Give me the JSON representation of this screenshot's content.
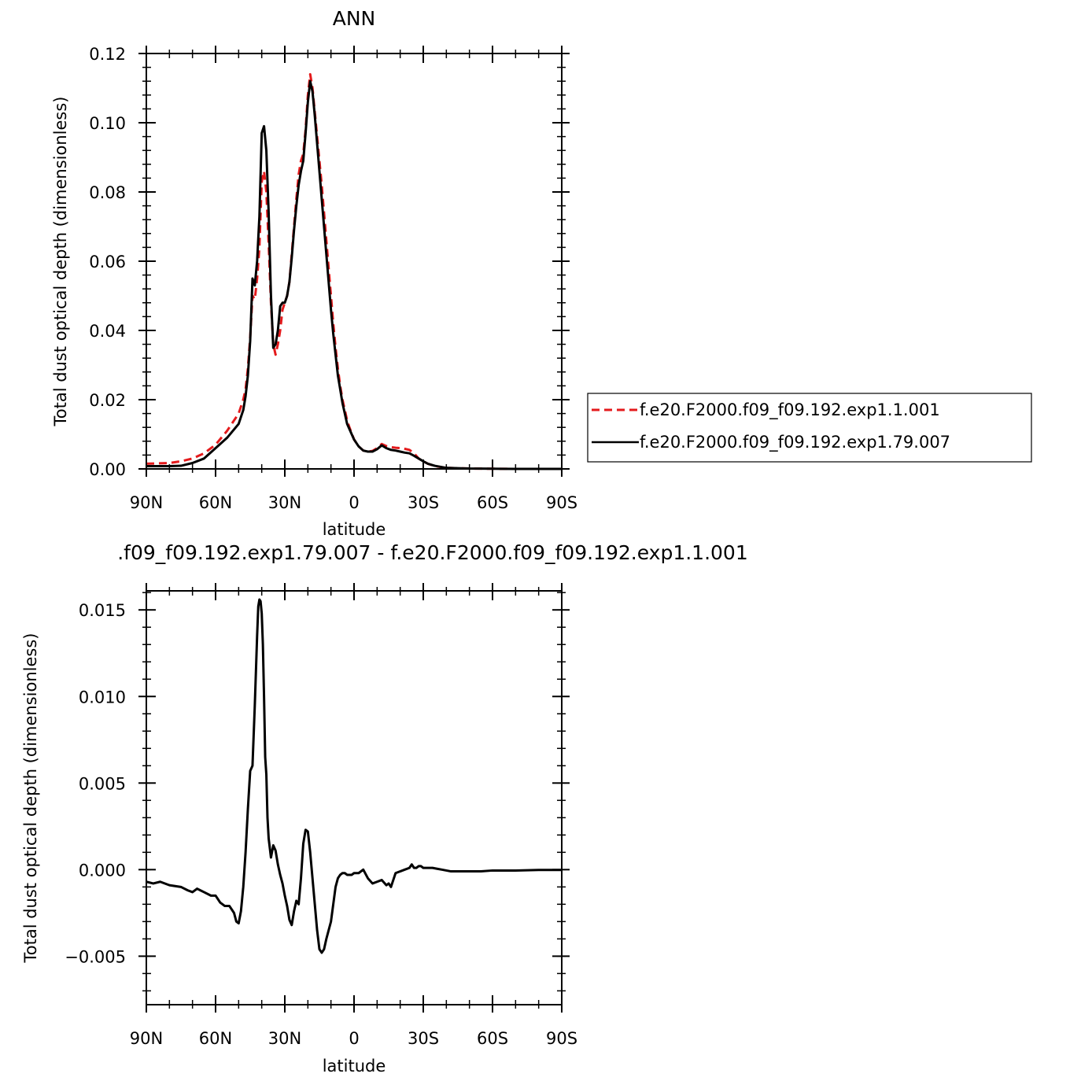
{
  "chart_data": [
    {
      "type": "line",
      "title": "ANN",
      "xlabel": "latitude",
      "ylabel": "Total dust optical depth (dimensionless)",
      "xlim": [
        90,
        -90
      ],
      "ylim": [
        0,
        0.12
      ],
      "xticks": [
        90,
        60,
        30,
        0,
        -30,
        -60,
        -90
      ],
      "xtick_labels": [
        "90N",
        "60N",
        "30N",
        "0",
        "30S",
        "60S",
        "90S"
      ],
      "yticks": [
        0,
        0.02,
        0.04,
        0.06,
        0.08,
        0.1,
        0.12
      ],
      "ytick_labels": [
        "0.00",
        "0.02",
        "0.04",
        "0.06",
        "0.08",
        "0.10",
        "0.12"
      ],
      "legend_position": "right",
      "series": [
        {
          "name": "f.e20.F2000.f09_f09.192.exp1.1.001",
          "color": "#e41a1c",
          "dash": "dashed",
          "x": [
            90,
            80,
            75,
            70,
            65,
            60,
            55,
            50,
            48,
            47,
            46,
            45,
            44,
            43,
            42,
            41,
            40,
            39,
            38,
            37,
            36,
            35,
            34,
            33,
            32,
            31,
            30,
            29,
            28,
            27,
            26,
            25,
            24,
            23,
            22,
            21,
            20,
            19,
            18,
            17,
            16,
            15,
            14,
            13,
            12,
            11,
            10,
            9,
            8,
            7,
            6,
            5,
            4,
            3,
            2,
            0,
            -2,
            -4,
            -6,
            -8,
            -10,
            -12,
            -14,
            -16,
            -18,
            -20,
            -22,
            -24,
            -26,
            -28,
            -30,
            -32,
            -35,
            -40,
            -45,
            -50,
            -60,
            -70,
            -80,
            -90
          ],
          "y": [
            0.0015,
            0.0017,
            0.0022,
            0.003,
            0.0045,
            0.007,
            0.011,
            0.016,
            0.02,
            0.023,
            0.029,
            0.038,
            0.05,
            0.049,
            0.055,
            0.064,
            0.083,
            0.086,
            0.08,
            0.065,
            0.048,
            0.036,
            0.033,
            0.036,
            0.04,
            0.046,
            0.048,
            0.05,
            0.054,
            0.062,
            0.07,
            0.078,
            0.085,
            0.089,
            0.091,
            0.098,
            0.108,
            0.114,
            0.11,
            0.103,
            0.096,
            0.089,
            0.082,
            0.074,
            0.066,
            0.058,
            0.05,
            0.042,
            0.035,
            0.029,
            0.024,
            0.02,
            0.017,
            0.014,
            0.012,
            0.0085,
            0.0065,
            0.0053,
            0.005,
            0.0052,
            0.006,
            0.0072,
            0.0066,
            0.0063,
            0.0061,
            0.006,
            0.0058,
            0.0055,
            0.0045,
            0.003,
            0.0022,
            0.0015,
            0.0008,
            0.0003,
            0.0002,
            0.0001,
            5e-05,
            0.0,
            0.0,
            0.0
          ]
        },
        {
          "name": "f.e20.F2000.f09_f09.192.exp1.79.007",
          "color": "#000000",
          "dash": "solid",
          "x": [
            90,
            80,
            75,
            70,
            65,
            60,
            55,
            50,
            48,
            47,
            46,
            45,
            44,
            43,
            42,
            41,
            40,
            39,
            38,
            37,
            36,
            35,
            34,
            33,
            32,
            31,
            30,
            29,
            28,
            27,
            26,
            25,
            24,
            23,
            22,
            21,
            20,
            19,
            18,
            17,
            16,
            15,
            14,
            13,
            12,
            11,
            10,
            9,
            8,
            7,
            6,
            5,
            4,
            3,
            2,
            0,
            -2,
            -4,
            -6,
            -8,
            -10,
            -12,
            -14,
            -16,
            -18,
            -20,
            -22,
            -24,
            -26,
            -28,
            -30,
            -32,
            -35,
            -40,
            -45,
            -50,
            -60,
            -70,
            -80,
            -90
          ],
          "y": [
            0.0008,
            0.0008,
            0.0009,
            0.0017,
            0.003,
            0.006,
            0.009,
            0.013,
            0.017,
            0.021,
            0.027,
            0.037,
            0.055,
            0.053,
            0.06,
            0.073,
            0.097,
            0.099,
            0.092,
            0.074,
            0.05,
            0.035,
            0.036,
            0.04,
            0.047,
            0.048,
            0.048,
            0.05,
            0.054,
            0.061,
            0.069,
            0.076,
            0.082,
            0.086,
            0.089,
            0.097,
            0.106,
            0.112,
            0.109,
            0.102,
            0.094,
            0.086,
            0.078,
            0.07,
            0.062,
            0.054,
            0.046,
            0.039,
            0.033,
            0.027,
            0.023,
            0.019,
            0.016,
            0.013,
            0.0115,
            0.0085,
            0.0065,
            0.0053,
            0.005,
            0.005,
            0.0057,
            0.0068,
            0.006,
            0.0055,
            0.0053,
            0.005,
            0.0047,
            0.0045,
            0.0038,
            0.003,
            0.0022,
            0.0015,
            0.0009,
            0.0003,
            0.0002,
            0.0001,
            5e-05,
            0.0,
            0.0,
            0.0
          ]
        }
      ]
    },
    {
      "type": "line",
      "title": ".f09_f09.192.exp1.79.007 - f.e20.F2000.f09_f09.192.exp1.1.001",
      "xlabel": "latitude",
      "ylabel": "Total dust optical depth (dimensionless)",
      "xlim": [
        90,
        -90
      ],
      "ylim": [
        -0.0078,
        0.0161
      ],
      "xticks": [
        90,
        60,
        30,
        0,
        -30,
        -60,
        -90
      ],
      "xtick_labels": [
        "90N",
        "60N",
        "30N",
        "0",
        "30S",
        "60S",
        "90S"
      ],
      "yticks": [
        -0.005,
        0.0,
        0.005,
        0.01,
        0.015
      ],
      "ytick_labels": [
        "−0.005",
        "0.000",
        "0.005",
        "0.010",
        "0.015"
      ],
      "series": [
        {
          "color": "#000000",
          "dash": "solid",
          "x": [
            90,
            87,
            84,
            80,
            75,
            72,
            70,
            68,
            65,
            62,
            60,
            58,
            56,
            54,
            52,
            51,
            50,
            49,
            48,
            47,
            46,
            45,
            44,
            43,
            42,
            41.5,
            41,
            40.5,
            40,
            39.5,
            39,
            38.5,
            38,
            37.5,
            37,
            36,
            35,
            34,
            33,
            32,
            31,
            30,
            29,
            28,
            27,
            26,
            25,
            24,
            23,
            22,
            21,
            20,
            19,
            18,
            17,
            16,
            15,
            14,
            13,
            12,
            11,
            10,
            9,
            8,
            7,
            6,
            5,
            4,
            3,
            2,
            1,
            0,
            -2,
            -4,
            -6,
            -8,
            -10,
            -12,
            -14,
            -15,
            -16,
            -17,
            -18,
            -20,
            -22,
            -24,
            -25,
            -26,
            -27,
            -28,
            -29,
            -30,
            -32,
            -34,
            -36,
            -38,
            -40,
            -42,
            -44,
            -46,
            -50,
            -55,
            -60,
            -70,
            -80,
            -90
          ],
          "y": [
            -0.0007,
            -0.0008,
            -0.0007,
            -0.0009,
            -0.001,
            -0.0012,
            -0.0013,
            -0.0011,
            -0.0013,
            -0.0015,
            -0.0015,
            -0.0019,
            -0.0021,
            -0.0021,
            -0.0025,
            -0.003,
            -0.0031,
            -0.0024,
            -0.001,
            0.001,
            0.0035,
            0.0057,
            0.006,
            0.0095,
            0.0135,
            0.0152,
            0.0156,
            0.0155,
            0.0148,
            0.013,
            0.01,
            0.0065,
            0.0055,
            0.003,
            0.0018,
            0.0007,
            0.0014,
            0.0011,
            0.0003,
            -0.0003,
            -0.0008,
            -0.0015,
            -0.0021,
            -0.0029,
            -0.0032,
            -0.0024,
            -0.0018,
            -0.002,
            -0.0005,
            0.0015,
            0.0023,
            0.0022,
            0.001,
            -0.0005,
            -0.002,
            -0.0035,
            -0.0046,
            -0.0048,
            -0.0046,
            -0.004,
            -0.0035,
            -0.003,
            -0.002,
            -0.001,
            -0.0005,
            -0.0003,
            -0.0002,
            -0.0002,
            -0.0003,
            -0.0003,
            -0.0003,
            -0.0002,
            -0.0002,
            0.0,
            -0.0005,
            -0.0008,
            -0.0007,
            -0.0006,
            -0.0009,
            -0.0008,
            -0.001,
            -0.0006,
            -0.0002,
            -0.0001,
            0.0,
            0.0001,
            0.0003,
            0.0001,
            0.0001,
            0.0002,
            0.0002,
            0.0001,
            0.0001,
            0.0001,
            5e-05,
            0.0,
            -5e-05,
            -0.0001,
            -0.0001,
            -0.0001,
            -0.0001,
            -0.0001,
            -5e-05,
            -5e-05,
            -2e-05,
            -2e-05
          ]
        }
      ]
    }
  ]
}
